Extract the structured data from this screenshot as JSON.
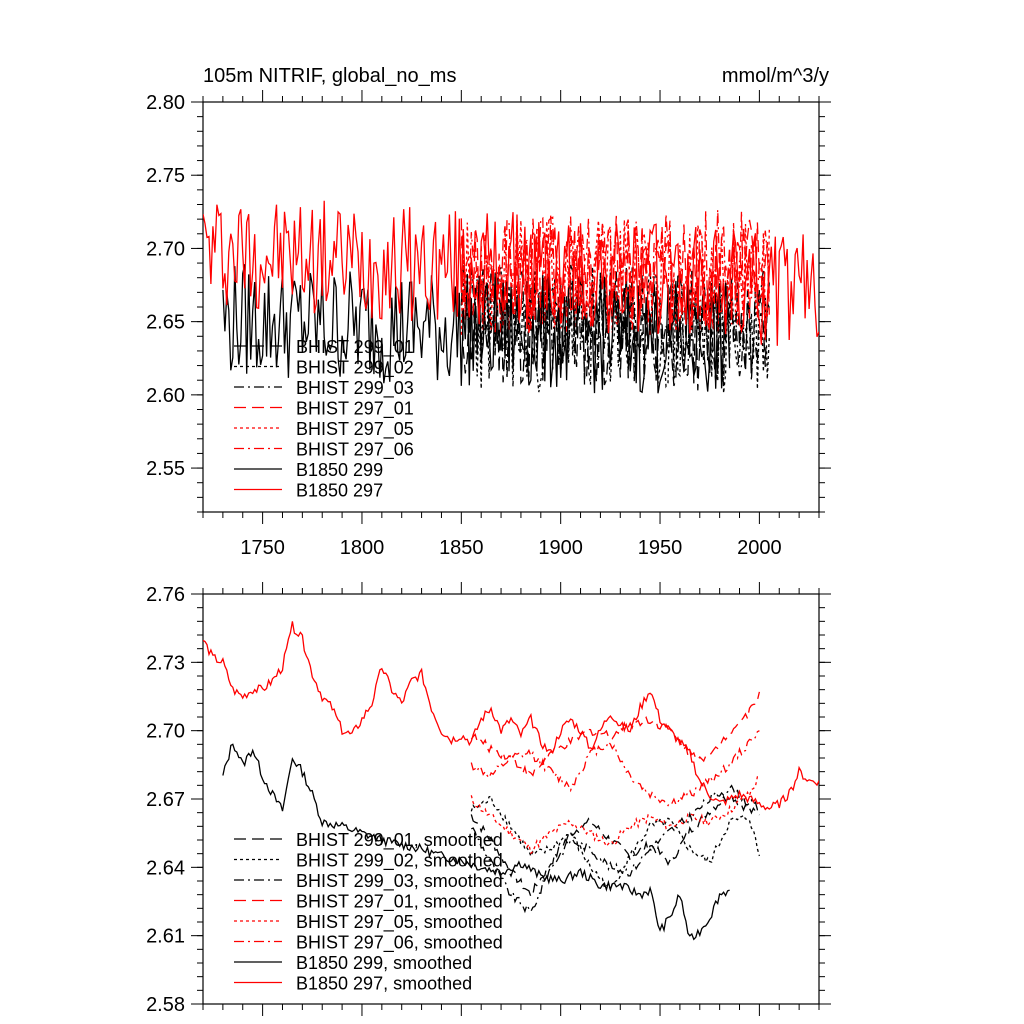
{
  "top_panel": {
    "title_left": "105m NITRIF, global_no_ms",
    "title_right": "mmol/m^3/y"
  },
  "chart_data": [
    {
      "type": "line",
      "xlim": [
        1720,
        2030
      ],
      "ylim": [
        2.52,
        2.8
      ],
      "x_ticks": [
        1750,
        1800,
        1850,
        1900,
        1950,
        2000
      ],
      "x_tick_labels": [
        "1750",
        "1800",
        "1850",
        "1900",
        "1950",
        "2000"
      ],
      "y_ticks": [
        2.55,
        2.6,
        2.65,
        2.7,
        2.75,
        2.8
      ],
      "y_tick_labels": [
        "2.55",
        "2.60",
        "2.65",
        "2.70",
        "2.75",
        "2.80"
      ],
      "legend_position": "lower-left",
      "series": [
        {
          "name": "BHIST 299_01",
          "color": "#000000",
          "dash": "long-dash",
          "start": 1850,
          "end": 2005,
          "mean": 2.648,
          "amp": 0.042,
          "seed": 11,
          "trend": -0.005
        },
        {
          "name": "BHIST 299_02",
          "color": "#000000",
          "dash": "dotted",
          "start": 1850,
          "end": 2005,
          "mean": 2.646,
          "amp": 0.044,
          "seed": 23,
          "trend": -0.004
        },
        {
          "name": "BHIST 299_03",
          "color": "#000000",
          "dash": "dash-dot",
          "start": 1850,
          "end": 2005,
          "mean": 2.65,
          "amp": 0.04,
          "seed": 37,
          "trend": -0.003
        },
        {
          "name": "BHIST 297_01",
          "color": "#ff0000",
          "dash": "long-dash",
          "start": 1850,
          "end": 2005,
          "mean": 2.682,
          "amp": 0.04,
          "seed": 41,
          "trend": 0.002
        },
        {
          "name": "BHIST 297_05",
          "color": "#ff0000",
          "dash": "dotted",
          "start": 1850,
          "end": 2005,
          "mean": 2.68,
          "amp": 0.04,
          "seed": 53,
          "trend": 0.0
        },
        {
          "name": "BHIST 297_06",
          "color": "#ff0000",
          "dash": "dash-dot",
          "start": 1850,
          "end": 2005,
          "mean": 2.684,
          "amp": 0.042,
          "seed": 67,
          "trend": 0.001
        },
        {
          "name": "B1850 299",
          "color": "#000000",
          "dash": "solid",
          "start": 1730,
          "end": 1985,
          "mean": 2.652,
          "amp": 0.04,
          "seed": 79,
          "trend": -0.015
        },
        {
          "name": "B1850 297",
          "color": "#ff0000",
          "dash": "solid",
          "start": 1720,
          "end": 2030,
          "mean": 2.7,
          "amp": 0.04,
          "seed": 97,
          "trend": -0.03
        }
      ]
    },
    {
      "type": "line",
      "xlim": [
        1720,
        2030
      ],
      "ylim": [
        2.58,
        2.76
      ],
      "x_ticks": [
        1750,
        1800,
        1850,
        1900,
        1950,
        2000
      ],
      "y_ticks": [
        2.58,
        2.61,
        2.64,
        2.67,
        2.7,
        2.73,
        2.76
      ],
      "y_tick_labels": [
        "2.58",
        "2.61",
        "2.64",
        "2.67",
        "2.70",
        "2.73",
        "2.76"
      ],
      "legend_position": "lower-left",
      "series": [
        {
          "name": "BHIST 299_01, smoothed",
          "color": "#000000",
          "dash": "long-dash",
          "start": 1855,
          "end": 2000,
          "points": [
            [
              1855,
              2.663
            ],
            [
              1865,
              2.652
            ],
            [
              1875,
              2.638
            ],
            [
              1885,
              2.628
            ],
            [
              1895,
              2.642
            ],
            [
              1905,
              2.655
            ],
            [
              1915,
              2.66
            ],
            [
              1925,
              2.652
            ],
            [
              1935,
              2.645
            ],
            [
              1945,
              2.65
            ],
            [
              1955,
              2.642
            ],
            [
              1965,
              2.656
            ],
            [
              1975,
              2.665
            ],
            [
              1985,
              2.672
            ],
            [
              1995,
              2.665
            ],
            [
              2000,
              2.663
            ]
          ]
        },
        {
          "name": "BHIST 299_02, smoothed",
          "color": "#000000",
          "dash": "dotted",
          "start": 1855,
          "end": 2000,
          "points": [
            [
              1855,
              2.665
            ],
            [
              1865,
              2.67
            ],
            [
              1875,
              2.658
            ],
            [
              1885,
              2.645
            ],
            [
              1895,
              2.648
            ],
            [
              1905,
              2.655
            ],
            [
              1915,
              2.64
            ],
            [
              1925,
              2.63
            ],
            [
              1935,
              2.645
            ],
            [
              1945,
              2.658
            ],
            [
              1955,
              2.66
            ],
            [
              1965,
              2.648
            ],
            [
              1975,
              2.642
            ],
            [
              1985,
              2.66
            ],
            [
              1995,
              2.662
            ],
            [
              2000,
              2.645
            ]
          ]
        },
        {
          "name": "BHIST 299_03, smoothed",
          "color": "#000000",
          "dash": "dash-dot",
          "start": 1855,
          "end": 2000,
          "points": [
            [
              1855,
              2.658
            ],
            [
              1865,
              2.642
            ],
            [
              1875,
              2.628
            ],
            [
              1885,
              2.62
            ],
            [
              1895,
              2.64
            ],
            [
              1905,
              2.652
            ],
            [
              1915,
              2.648
            ],
            [
              1925,
              2.64
            ],
            [
              1935,
              2.638
            ],
            [
              1945,
              2.648
            ],
            [
              1955,
              2.656
            ],
            [
              1965,
              2.662
            ],
            [
              1975,
              2.67
            ],
            [
              1985,
              2.675
            ],
            [
              1995,
              2.668
            ],
            [
              2000,
              2.666
            ]
          ]
        },
        {
          "name": "BHIST 297_01, smoothed",
          "color": "#ff0000",
          "dash": "long-dash",
          "start": 1855,
          "end": 2000,
          "points": [
            [
              1855,
              2.698
            ],
            [
              1865,
              2.692
            ],
            [
              1875,
              2.688
            ],
            [
              1885,
              2.68
            ],
            [
              1895,
              2.69
            ],
            [
              1905,
              2.695
            ],
            [
              1915,
              2.7
            ],
            [
              1925,
              2.698
            ],
            [
              1935,
              2.703
            ],
            [
              1945,
              2.705
            ],
            [
              1955,
              2.7
            ],
            [
              1965,
              2.69
            ],
            [
              1975,
              2.688
            ],
            [
              1985,
              2.7
            ],
            [
              1995,
              2.708
            ],
            [
              2000,
              2.717
            ]
          ]
        },
        {
          "name": "BHIST 297_05, smoothed",
          "color": "#ff0000",
          "dash": "dotted",
          "start": 1855,
          "end": 2000,
          "points": [
            [
              1855,
              2.67
            ],
            [
              1865,
              2.662
            ],
            [
              1875,
              2.655
            ],
            [
              1885,
              2.648
            ],
            [
              1895,
              2.655
            ],
            [
              1905,
              2.66
            ],
            [
              1915,
              2.655
            ],
            [
              1925,
              2.65
            ],
            [
              1935,
              2.658
            ],
            [
              1945,
              2.662
            ],
            [
              1955,
              2.658
            ],
            [
              1965,
              2.662
            ],
            [
              1975,
              2.66
            ],
            [
              1985,
              2.665
            ],
            [
              1995,
              2.672
            ],
            [
              2000,
              2.68
            ]
          ]
        },
        {
          "name": "BHIST 297_06, smoothed",
          "color": "#ff0000",
          "dash": "dash-dot",
          "start": 1855,
          "end": 2000,
          "points": [
            [
              1855,
              2.685
            ],
            [
              1865,
              2.68
            ],
            [
              1875,
              2.688
            ],
            [
              1885,
              2.69
            ],
            [
              1895,
              2.682
            ],
            [
              1905,
              2.675
            ],
            [
              1915,
              2.69
            ],
            [
              1925,
              2.695
            ],
            [
              1935,
              2.68
            ],
            [
              1945,
              2.672
            ],
            [
              1955,
              2.668
            ],
            [
              1965,
              2.672
            ],
            [
              1975,
              2.678
            ],
            [
              1985,
              2.685
            ],
            [
              1995,
              2.695
            ],
            [
              2000,
              2.7
            ]
          ]
        },
        {
          "name": "B1850 299, smoothed",
          "color": "#000000",
          "dash": "solid",
          "start": 1730,
          "end": 1985,
          "points": [
            [
              1730,
              2.68
            ],
            [
              1735,
              2.695
            ],
            [
              1740,
              2.685
            ],
            [
              1745,
              2.692
            ],
            [
              1750,
              2.68
            ],
            [
              1755,
              2.672
            ],
            [
              1760,
              2.665
            ],
            [
              1765,
              2.688
            ],
            [
              1770,
              2.682
            ],
            [
              1775,
              2.672
            ],
            [
              1780,
              2.66
            ],
            [
              1790,
              2.658
            ],
            [
              1800,
              2.655
            ],
            [
              1810,
              2.652
            ],
            [
              1820,
              2.65
            ],
            [
              1830,
              2.648
            ],
            [
              1840,
              2.645
            ],
            [
              1850,
              2.643
            ],
            [
              1860,
              2.64
            ],
            [
              1870,
              2.638
            ],
            [
              1880,
              2.642
            ],
            [
              1890,
              2.636
            ],
            [
              1900,
              2.634
            ],
            [
              1910,
              2.638
            ],
            [
              1920,
              2.632
            ],
            [
              1930,
              2.632
            ],
            [
              1940,
              2.628
            ],
            [
              1945,
              2.63
            ],
            [
              1950,
              2.612
            ],
            [
              1955,
              2.618
            ],
            [
              1960,
              2.628
            ],
            [
              1965,
              2.608
            ],
            [
              1970,
              2.612
            ],
            [
              1975,
              2.618
            ],
            [
              1980,
              2.628
            ],
            [
              1985,
              2.63
            ]
          ]
        },
        {
          "name": "B1850 297, smoothed",
          "color": "#ff0000",
          "dash": "solid",
          "start": 1720,
          "end": 2030,
          "points": [
            [
              1720,
              2.74
            ],
            [
              1725,
              2.732
            ],
            [
              1730,
              2.73
            ],
            [
              1735,
              2.718
            ],
            [
              1740,
              2.715
            ],
            [
              1745,
              2.718
            ],
            [
              1750,
              2.718
            ],
            [
              1755,
              2.722
            ],
            [
              1760,
              2.728
            ],
            [
              1765,
              2.746
            ],
            [
              1770,
              2.74
            ],
            [
              1775,
              2.725
            ],
            [
              1780,
              2.715
            ],
            [
              1785,
              2.71
            ],
            [
              1790,
              2.7
            ],
            [
              1795,
              2.698
            ],
            [
              1800,
              2.705
            ],
            [
              1805,
              2.712
            ],
            [
              1810,
              2.728
            ],
            [
              1815,
              2.718
            ],
            [
              1820,
              2.712
            ],
            [
              1825,
              2.722
            ],
            [
              1830,
              2.725
            ],
            [
              1835,
              2.71
            ],
            [
              1840,
              2.7
            ],
            [
              1845,
              2.696
            ],
            [
              1850,
              2.698
            ],
            [
              1855,
              2.695
            ],
            [
              1860,
              2.705
            ],
            [
              1865,
              2.71
            ],
            [
              1870,
              2.7
            ],
            [
              1875,
              2.705
            ],
            [
              1880,
              2.698
            ],
            [
              1885,
              2.705
            ],
            [
              1890,
              2.695
            ],
            [
              1895,
              2.69
            ],
            [
              1900,
              2.7
            ],
            [
              1905,
              2.705
            ],
            [
              1910,
              2.7
            ],
            [
              1915,
              2.692
            ],
            [
              1920,
              2.7
            ],
            [
              1925,
              2.708
            ],
            [
              1930,
              2.702
            ],
            [
              1935,
              2.7
            ],
            [
              1940,
              2.71
            ],
            [
              1945,
              2.718
            ],
            [
              1950,
              2.705
            ],
            [
              1955,
              2.7
            ],
            [
              1960,
              2.695
            ],
            [
              1965,
              2.69
            ],
            [
              1970,
              2.678
            ],
            [
              1975,
              2.672
            ],
            [
              1980,
              2.668
            ],
            [
              1985,
              2.67
            ],
            [
              1990,
              2.672
            ],
            [
              1995,
              2.67
            ],
            [
              2000,
              2.668
            ],
            [
              2005,
              2.666
            ],
            [
              2010,
              2.668
            ],
            [
              2015,
              2.672
            ],
            [
              2020,
              2.682
            ],
            [
              2025,
              2.678
            ],
            [
              2030,
              2.678
            ]
          ]
        }
      ]
    }
  ]
}
